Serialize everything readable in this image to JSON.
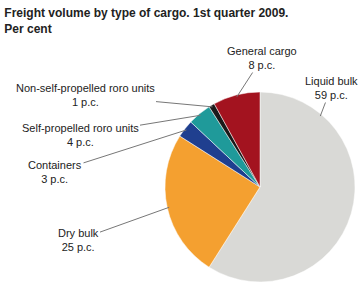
{
  "chart_data": {
    "type": "pie",
    "title": "Freight volume by type of cargo. 1st quarter 2009.",
    "subtitle": "Per cent",
    "categories": [
      "Liquid bulk",
      "Dry bulk",
      "Containers",
      "Self-propelled roro units",
      "Non-self-propelled roro units",
      "General cargo"
    ],
    "values": [
      59,
      25,
      3,
      4,
      1,
      8
    ],
    "value_labels": [
      "59 p.c.",
      "25 p.c.",
      "3 p.c.",
      "4 p.c.",
      "1 p.c.",
      "8 p.c."
    ],
    "colors": [
      "#d9d9d6",
      "#f4a030",
      "#1f3f8f",
      "#1f9a9a",
      "#1a1a1a",
      "#a3131f"
    ],
    "data_labels": true
  }
}
